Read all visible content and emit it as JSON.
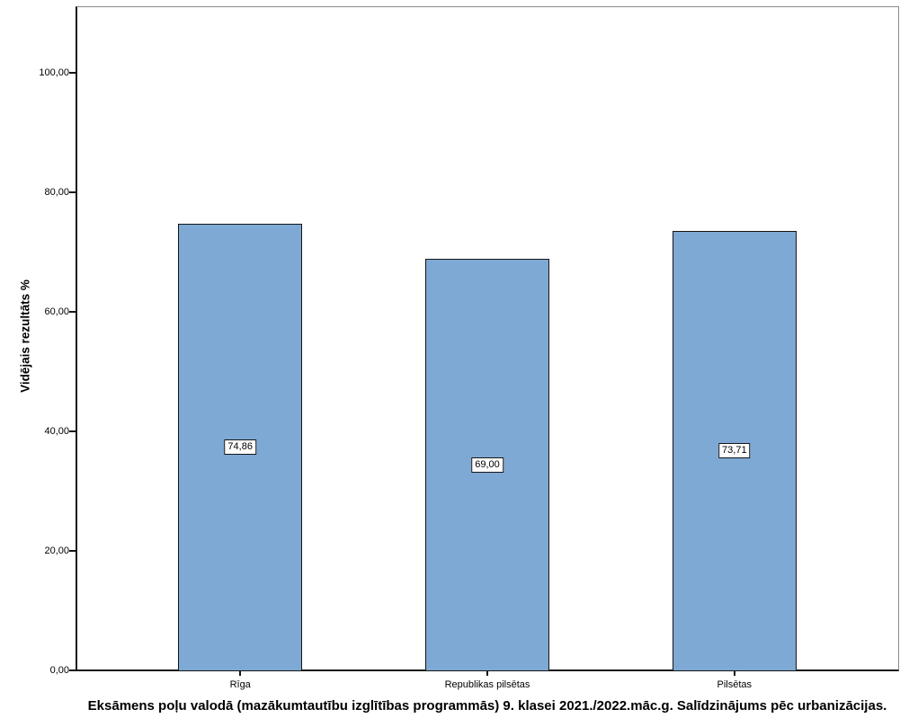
{
  "chart_data": {
    "type": "bar",
    "title": "Eksāmens poļu valodā (mazākumtautību izglītības programmās) 9. klasei 2021./2022.māc.g. Salīdzinājums pēc urbanizācijas.",
    "ylabel": "Vidējais rezultāts %",
    "xlabel": "",
    "categories": [
      "Rīga",
      "Republikas pilsētas",
      "Pilsētas"
    ],
    "values": [
      74.86,
      69.0,
      73.71
    ],
    "value_labels": [
      "74,86",
      "69,00",
      "73,71"
    ],
    "y_ticks": [
      0,
      20,
      40,
      60,
      80,
      100
    ],
    "y_tick_labels": [
      "0,00",
      "20,00",
      "40,00",
      "60,00",
      "80,00",
      "100,00"
    ],
    "ylim": [
      0,
      111.3
    ],
    "grid": false,
    "legend": false,
    "bar_color": "#7DA9D4",
    "bar_border_color": "#151515",
    "axis_color": "#141414",
    "frame_color": "#8a8a8a"
  }
}
